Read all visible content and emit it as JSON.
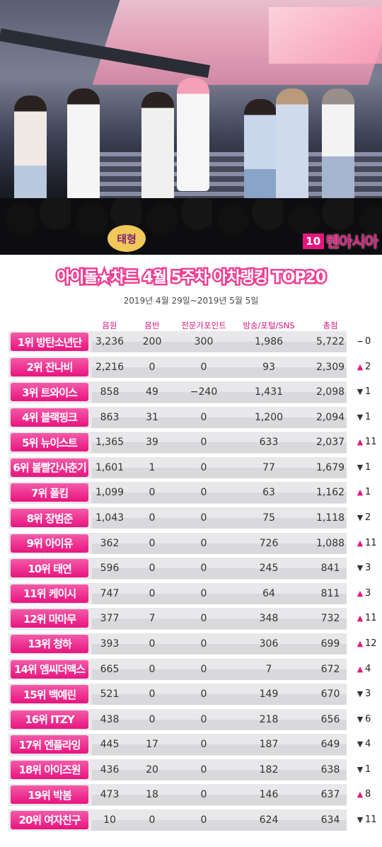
{
  "photo": {
    "fan_sign_text": "태형",
    "logo_mark": "10",
    "logo_sub": "asia",
    "logo_text": "텐아시아"
  },
  "title": "아이돌★차트 4월 5주차 아차랭킹 TOP20",
  "date_range": "2019년 4월 29일~2019년 5월 5일",
  "columns": [
    "음원",
    "음반",
    "전문가포인트",
    "방송/포털/SNS",
    "총점"
  ],
  "colors": {
    "accent": "#e8147f",
    "row_bg": "#e8e8ea",
    "header_text": "#d4147e"
  },
  "rows": [
    {
      "rank": "1위 방탄소년단",
      "music": "3,236",
      "album": "200",
      "expert": "300",
      "media": "1,986",
      "total": "5,722",
      "dir": "same",
      "change": "0"
    },
    {
      "rank": "2위 잔나비",
      "music": "2,216",
      "album": "0",
      "expert": "0",
      "media": "93",
      "total": "2,309",
      "dir": "up",
      "change": "2"
    },
    {
      "rank": "3위 트와이스",
      "music": "858",
      "album": "49",
      "expert": "−240",
      "media": "1,431",
      "total": "2,098",
      "dir": "down",
      "change": "1"
    },
    {
      "rank": "4위 블랙핑크",
      "music": "863",
      "album": "31",
      "expert": "0",
      "media": "1,200",
      "total": "2,094",
      "dir": "down",
      "change": "1"
    },
    {
      "rank": "5위 뉴이스트",
      "music": "1,365",
      "album": "39",
      "expert": "0",
      "media": "633",
      "total": "2,037",
      "dir": "up",
      "change": "11"
    },
    {
      "rank": "6위 볼빨간사춘기",
      "music": "1,601",
      "album": "1",
      "expert": "0",
      "media": "77",
      "total": "1,679",
      "dir": "down",
      "change": "1"
    },
    {
      "rank": "7위 폴킴",
      "music": "1,099",
      "album": "0",
      "expert": "0",
      "media": "63",
      "total": "1,162",
      "dir": "up",
      "change": "1"
    },
    {
      "rank": "8위 장범준",
      "music": "1,043",
      "album": "0",
      "expert": "0",
      "media": "75",
      "total": "1,118",
      "dir": "down",
      "change": "2"
    },
    {
      "rank": "9위 아이유",
      "music": "362",
      "album": "0",
      "expert": "0",
      "media": "726",
      "total": "1,088",
      "dir": "up",
      "change": "11"
    },
    {
      "rank": "10위 태연",
      "music": "596",
      "album": "0",
      "expert": "0",
      "media": "245",
      "total": "841",
      "dir": "down",
      "change": "3"
    },
    {
      "rank": "11위 케이시",
      "music": "747",
      "album": "0",
      "expert": "0",
      "media": "64",
      "total": "811",
      "dir": "up",
      "change": "3"
    },
    {
      "rank": "12위 마마무",
      "music": "377",
      "album": "7",
      "expert": "0",
      "media": "348",
      "total": "732",
      "dir": "up",
      "change": "11"
    },
    {
      "rank": "13위 청하",
      "music": "393",
      "album": "0",
      "expert": "0",
      "media": "306",
      "total": "699",
      "dir": "up",
      "change": "12"
    },
    {
      "rank": "14위 엠씨더맥스",
      "music": "665",
      "album": "0",
      "expert": "0",
      "media": "7",
      "total": "672",
      "dir": "up",
      "change": "4"
    },
    {
      "rank": "15위 백예린",
      "music": "521",
      "album": "0",
      "expert": "0",
      "media": "149",
      "total": "670",
      "dir": "down",
      "change": "3"
    },
    {
      "rank": "16위 ITZY",
      "music": "438",
      "album": "0",
      "expert": "0",
      "media": "218",
      "total": "656",
      "dir": "down",
      "change": "6"
    },
    {
      "rank": "17위 엔플라잉",
      "music": "445",
      "album": "17",
      "expert": "0",
      "media": "187",
      "total": "649",
      "dir": "down",
      "change": "4"
    },
    {
      "rank": "18위 아이즈원",
      "music": "436",
      "album": "20",
      "expert": "0",
      "media": "182",
      "total": "638",
      "dir": "down",
      "change": "1"
    },
    {
      "rank": "19위 박봄",
      "music": "473",
      "album": "18",
      "expert": "0",
      "media": "146",
      "total": "637",
      "dir": "up",
      "change": "8"
    },
    {
      "rank": "20위 여자친구",
      "music": "10",
      "album": "0",
      "expert": "0",
      "media": "624",
      "total": "634",
      "dir": "down",
      "change": "11"
    }
  ]
}
